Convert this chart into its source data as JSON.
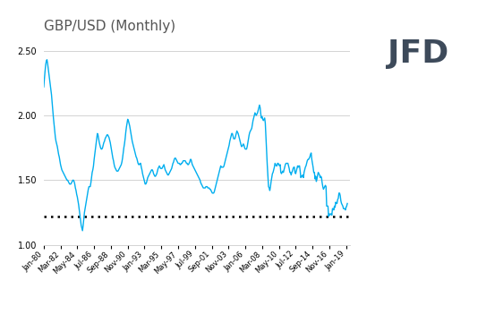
{
  "title": "GBP/USD (Monthly)",
  "line_color": "#00AEEF",
  "dotted_line_value": 1.22,
  "dotted_line_color": "#000000",
  "background_color": "#ffffff",
  "grid_color": "#cccccc",
  "ylim": [
    1.0,
    2.6
  ],
  "yticks": [
    1.0,
    1.5,
    2.0,
    2.5
  ],
  "x_tick_labels": [
    "Jan-80",
    "Mar-82",
    "May-84",
    "Jul-86",
    "Sep-88",
    "Nov-90",
    "Jan-93",
    "Mar-95",
    "May-97",
    "Jul-99",
    "Sep-01",
    "Nov-03",
    "Jan-06",
    "Mar-08",
    "May-10",
    "Jul-12",
    "Sep-14",
    "Nov-16",
    "Jan-19"
  ],
  "label_map": {
    "Jan-80": 1980.0,
    "Mar-82": 1982.167,
    "May-84": 1984.333,
    "Jul-86": 1986.5,
    "Sep-88": 1988.667,
    "Nov-90": 1990.833,
    "Jan-93": 1993.0,
    "Mar-95": 1995.167,
    "May-97": 1997.333,
    "Jul-99": 1999.5,
    "Sep-01": 2001.667,
    "Nov-03": 2003.833,
    "Jan-06": 2006.0,
    "Mar-08": 2008.167,
    "May-10": 2010.333,
    "Jul-12": 2012.5,
    "Sep-14": 2014.667,
    "Nov-16": 2016.833,
    "Jan-19": 2019.0
  },
  "gbpusd": [
    2.22,
    2.28,
    2.34,
    2.39,
    2.42,
    2.43,
    2.4,
    2.36,
    2.32,
    2.28,
    2.24,
    2.2,
    2.16,
    2.1,
    2.04,
    1.98,
    1.93,
    1.88,
    1.83,
    1.8,
    1.78,
    1.76,
    1.73,
    1.7,
    1.68,
    1.65,
    1.62,
    1.6,
    1.58,
    1.57,
    1.56,
    1.55,
    1.54,
    1.53,
    1.52,
    1.51,
    1.5,
    1.5,
    1.49,
    1.48,
    1.47,
    1.47,
    1.47,
    1.48,
    1.49,
    1.5,
    1.5,
    1.49,
    1.47,
    1.44,
    1.42,
    1.39,
    1.37,
    1.34,
    1.31,
    1.27,
    1.23,
    1.19,
    1.15,
    1.13,
    1.11,
    1.15,
    1.2,
    1.25,
    1.28,
    1.31,
    1.34,
    1.37,
    1.4,
    1.43,
    1.45,
    1.45,
    1.45,
    1.48,
    1.52,
    1.56,
    1.58,
    1.61,
    1.66,
    1.7,
    1.74,
    1.78,
    1.82,
    1.86,
    1.85,
    1.82,
    1.79,
    1.77,
    1.75,
    1.74,
    1.74,
    1.75,
    1.77,
    1.79,
    1.8,
    1.82,
    1.83,
    1.84,
    1.85,
    1.85,
    1.84,
    1.83,
    1.81,
    1.79,
    1.76,
    1.73,
    1.7,
    1.67,
    1.65,
    1.62,
    1.6,
    1.59,
    1.58,
    1.57,
    1.57,
    1.57,
    1.58,
    1.59,
    1.6,
    1.61,
    1.62,
    1.64,
    1.67,
    1.71,
    1.75,
    1.78,
    1.82,
    1.87,
    1.91,
    1.94,
    1.97,
    1.96,
    1.94,
    1.92,
    1.89,
    1.86,
    1.83,
    1.8,
    1.78,
    1.76,
    1.74,
    1.72,
    1.7,
    1.68,
    1.67,
    1.65,
    1.63,
    1.62,
    1.62,
    1.63,
    1.63,
    1.6,
    1.58,
    1.55,
    1.53,
    1.51,
    1.49,
    1.47,
    1.47,
    1.48,
    1.5,
    1.52,
    1.53,
    1.54,
    1.55,
    1.56,
    1.57,
    1.58,
    1.58,
    1.57,
    1.55,
    1.54,
    1.53,
    1.53,
    1.54,
    1.55,
    1.57,
    1.59,
    1.6,
    1.61,
    1.6,
    1.59,
    1.59,
    1.59,
    1.6,
    1.61,
    1.62,
    1.6,
    1.58,
    1.57,
    1.56,
    1.55,
    1.54,
    1.54,
    1.55,
    1.56,
    1.57,
    1.58,
    1.59,
    1.61,
    1.63,
    1.64,
    1.66,
    1.67,
    1.67,
    1.66,
    1.65,
    1.64,
    1.63,
    1.63,
    1.63,
    1.62,
    1.62,
    1.63,
    1.63,
    1.64,
    1.65,
    1.65,
    1.65,
    1.65,
    1.64,
    1.63,
    1.63,
    1.62,
    1.62,
    1.63,
    1.64,
    1.66,
    1.66,
    1.64,
    1.62,
    1.61,
    1.6,
    1.59,
    1.58,
    1.57,
    1.56,
    1.55,
    1.54,
    1.53,
    1.52,
    1.51,
    1.5,
    1.48,
    1.47,
    1.46,
    1.45,
    1.44,
    1.44,
    1.44,
    1.44,
    1.45,
    1.45,
    1.45,
    1.44,
    1.44,
    1.44,
    1.43,
    1.43,
    1.42,
    1.41,
    1.4,
    1.4,
    1.4,
    1.41,
    1.43,
    1.45,
    1.47,
    1.49,
    1.51,
    1.53,
    1.55,
    1.57,
    1.59,
    1.61,
    1.6,
    1.6,
    1.6,
    1.6,
    1.61,
    1.63,
    1.65,
    1.67,
    1.69,
    1.71,
    1.73,
    1.75,
    1.77,
    1.8,
    1.82,
    1.84,
    1.86,
    1.86,
    1.84,
    1.82,
    1.82,
    1.82,
    1.84,
    1.86,
    1.88,
    1.87,
    1.86,
    1.84,
    1.82,
    1.8,
    1.78,
    1.76,
    1.76,
    1.77,
    1.78,
    1.77,
    1.75,
    1.74,
    1.74,
    1.74,
    1.76,
    1.79,
    1.82,
    1.85,
    1.87,
    1.88,
    1.89,
    1.9,
    1.93,
    1.96,
    1.98,
    2.0,
    2.02,
    2.01,
    2.0,
    2.01,
    2.02,
    2.04,
    2.06,
    2.08,
    2.06,
    2.01,
    1.98,
    1.99,
    1.97,
    1.96,
    1.97,
    1.98,
    1.94,
    1.83,
    1.73,
    1.62,
    1.54,
    1.45,
    1.44,
    1.42,
    1.45,
    1.49,
    1.52,
    1.55,
    1.56,
    1.58,
    1.6,
    1.63,
    1.62,
    1.61,
    1.61,
    1.63,
    1.63,
    1.62,
    1.61,
    1.62,
    1.56,
    1.55,
    1.56,
    1.57,
    1.56,
    1.58,
    1.6,
    1.62,
    1.63,
    1.63,
    1.63,
    1.63,
    1.61,
    1.59,
    1.56,
    1.56,
    1.54,
    1.56,
    1.57,
    1.59,
    1.6,
    1.6,
    1.56,
    1.55,
    1.57,
    1.59,
    1.61,
    1.6,
    1.61,
    1.61,
    1.57,
    1.52,
    1.53,
    1.53,
    1.54,
    1.52,
    1.56,
    1.58,
    1.6,
    1.61,
    1.63,
    1.65,
    1.66,
    1.66,
    1.67,
    1.68,
    1.7,
    1.71,
    1.66,
    1.63,
    1.6,
    1.56,
    1.56,
    1.51,
    1.53,
    1.49,
    1.51,
    1.54,
    1.56,
    1.55,
    1.54,
    1.52,
    1.53,
    1.52,
    1.48,
    1.45,
    1.43,
    1.44,
    1.45,
    1.46,
    1.45,
    1.3,
    1.3,
    1.3,
    1.22,
    1.24,
    1.23,
    1.24,
    1.24,
    1.23,
    1.28,
    1.28,
    1.27,
    1.3,
    1.29,
    1.33,
    1.32,
    1.32,
    1.35,
    1.36,
    1.4,
    1.4,
    1.38,
    1.34,
    1.32,
    1.31,
    1.3,
    1.28,
    1.28,
    1.28,
    1.27,
    1.29,
    1.3,
    1.32
  ],
  "xlim_start": 1980.0,
  "xlim_end": 2019.5
}
